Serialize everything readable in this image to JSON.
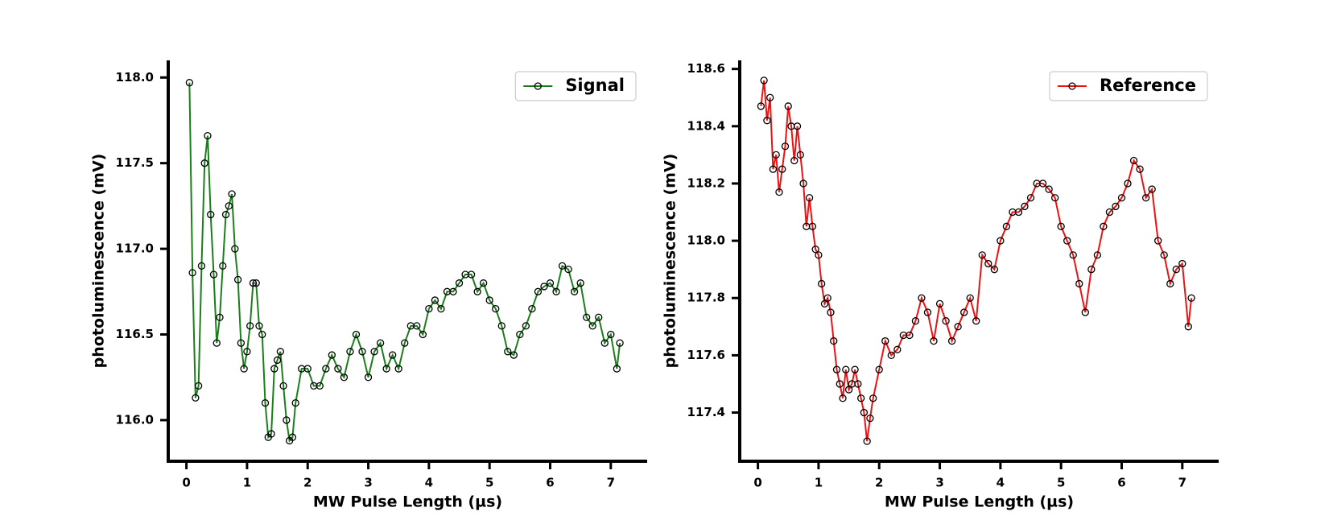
{
  "chart_data": [
    {
      "type": "line",
      "xlabel": "MW Pulse Length (µs)",
      "ylabel": "photoluminescence (mV)",
      "legend": "upper right",
      "x": [
        0.05,
        0.1,
        0.15,
        0.2,
        0.25,
        0.3,
        0.35,
        0.4,
        0.45,
        0.5,
        0.55,
        0.6,
        0.65,
        0.7,
        0.75,
        0.8,
        0.85,
        0.9,
        0.95,
        1.0,
        1.05,
        1.1,
        1.15,
        1.2,
        1.25,
        1.3,
        1.35,
        1.4,
        1.45,
        1.5,
        1.55,
        1.6,
        1.65,
        1.7,
        1.75,
        1.8,
        1.9,
        2.0,
        2.1,
        2.2,
        2.3,
        2.4,
        2.5,
        2.6,
        2.7,
        2.8,
        2.9,
        3.0,
        3.1,
        3.2,
        3.3,
        3.4,
        3.5,
        3.6,
        3.7,
        3.8,
        3.9,
        4.0,
        4.1,
        4.2,
        4.3,
        4.4,
        4.5,
        4.6,
        4.7,
        4.8,
        4.9,
        5.0,
        5.1,
        5.2,
        5.3,
        5.4,
        5.5,
        5.6,
        5.7,
        5.8,
        5.9,
        6.0,
        6.1,
        6.2,
        6.3,
        6.4,
        6.5,
        6.6,
        6.7,
        6.8,
        6.9,
        7.0,
        7.1,
        7.15
      ],
      "series": [
        {
          "name": "Signal",
          "color": "#1a7f1a",
          "values": [
            117.97,
            116.86,
            116.13,
            116.2,
            116.9,
            117.5,
            117.66,
            117.2,
            116.85,
            116.45,
            116.6,
            116.9,
            117.2,
            117.25,
            117.32,
            117.0,
            116.82,
            116.45,
            116.3,
            116.4,
            116.55,
            116.8,
            116.8,
            116.55,
            116.5,
            116.1,
            115.9,
            115.92,
            116.3,
            116.35,
            116.4,
            116.2,
            116.0,
            115.88,
            115.9,
            116.1,
            116.3,
            116.3,
            116.2,
            116.2,
            116.3,
            116.38,
            116.3,
            116.25,
            116.4,
            116.5,
            116.4,
            116.25,
            116.4,
            116.45,
            116.3,
            116.38,
            116.3,
            116.45,
            116.55,
            116.55,
            116.5,
            116.65,
            116.7,
            116.65,
            116.75,
            116.75,
            116.8,
            116.85,
            116.85,
            116.75,
            116.8,
            116.7,
            116.65,
            116.55,
            116.4,
            116.38,
            116.5,
            116.55,
            116.65,
            116.75,
            116.78,
            116.8,
            116.75,
            116.9,
            116.88,
            116.75,
            116.8,
            116.6,
            116.55,
            116.6,
            116.45,
            116.5,
            116.3,
            116.45
          ]
        }
      ],
      "xlim": [
        -0.3,
        7.6
      ],
      "ylim": [
        115.76,
        118.1
      ],
      "xticks": [
        0,
        1,
        2,
        3,
        4,
        5,
        6,
        7
      ],
      "yticks": [
        {
          "value": 116,
          "label": "116.0"
        },
        {
          "value": 116.5,
          "label": "116.5"
        },
        {
          "value": 117,
          "label": "117.0"
        },
        {
          "value": 117.5,
          "label": "117.5"
        },
        {
          "value": 118,
          "label": "118.0"
        }
      ]
    },
    {
      "type": "line",
      "xlabel": "MW Pulse Length (µs)",
      "ylabel": "photoluminescence (mV)",
      "legend": "upper right",
      "x": [
        0.05,
        0.1,
        0.15,
        0.2,
        0.25,
        0.3,
        0.35,
        0.4,
        0.45,
        0.5,
        0.55,
        0.6,
        0.65,
        0.7,
        0.75,
        0.8,
        0.85,
        0.9,
        0.95,
        1.0,
        1.05,
        1.1,
        1.15,
        1.2,
        1.25,
        1.3,
        1.35,
        1.4,
        1.45,
        1.5,
        1.55,
        1.6,
        1.65,
        1.7,
        1.75,
        1.8,
        1.85,
        1.9,
        2.0,
        2.1,
        2.2,
        2.3,
        2.4,
        2.5,
        2.6,
        2.7,
        2.8,
        2.9,
        3.0,
        3.1,
        3.2,
        3.3,
        3.4,
        3.5,
        3.6,
        3.7,
        3.8,
        3.9,
        4.0,
        4.1,
        4.2,
        4.3,
        4.4,
        4.5,
        4.6,
        4.7,
        4.8,
        4.9,
        5.0,
        5.1,
        5.2,
        5.3,
        5.4,
        5.5,
        5.6,
        5.7,
        5.8,
        5.9,
        6.0,
        6.1,
        6.2,
        6.3,
        6.4,
        6.5,
        6.6,
        6.7,
        6.8,
        6.9,
        7.0,
        7.1,
        7.15
      ],
      "series": [
        {
          "name": "Reference",
          "color": "#ee1111",
          "values": [
            118.47,
            118.56,
            118.42,
            118.5,
            118.25,
            118.3,
            118.17,
            118.25,
            118.33,
            118.47,
            118.4,
            118.28,
            118.4,
            118.3,
            118.2,
            118.05,
            118.15,
            118.05,
            117.97,
            117.95,
            117.85,
            117.78,
            117.8,
            117.75,
            117.65,
            117.55,
            117.5,
            117.45,
            117.55,
            117.48,
            117.5,
            117.55,
            117.5,
            117.45,
            117.4,
            117.3,
            117.38,
            117.45,
            117.55,
            117.65,
            117.6,
            117.62,
            117.67,
            117.67,
            117.72,
            117.8,
            117.75,
            117.65,
            117.78,
            117.72,
            117.65,
            117.7,
            117.75,
            117.8,
            117.72,
            117.95,
            117.92,
            117.9,
            118.0,
            118.05,
            118.1,
            118.1,
            118.12,
            118.15,
            118.2,
            118.2,
            118.18,
            118.15,
            118.05,
            118.0,
            117.95,
            117.85,
            117.75,
            117.9,
            117.95,
            118.05,
            118.1,
            118.12,
            118.15,
            118.2,
            118.28,
            118.25,
            118.15,
            118.18,
            118.0,
            117.95,
            117.85,
            117.9,
            117.92,
            117.7,
            117.8
          ]
        }
      ],
      "xlim": [
        -0.3,
        7.6
      ],
      "ylim": [
        117.23,
        118.63
      ],
      "xticks": [
        0,
        1,
        2,
        3,
        4,
        5,
        6,
        7
      ],
      "yticks": [
        {
          "value": 117.4,
          "label": "117.4"
        },
        {
          "value": 117.6,
          "label": "117.6"
        },
        {
          "value": 117.8,
          "label": "117.8"
        },
        {
          "value": 118,
          "label": "118.0"
        },
        {
          "value": 118.2,
          "label": "118.2"
        },
        {
          "value": 118.4,
          "label": "118.4"
        },
        {
          "value": 118.6,
          "label": "118.6"
        }
      ]
    }
  ]
}
